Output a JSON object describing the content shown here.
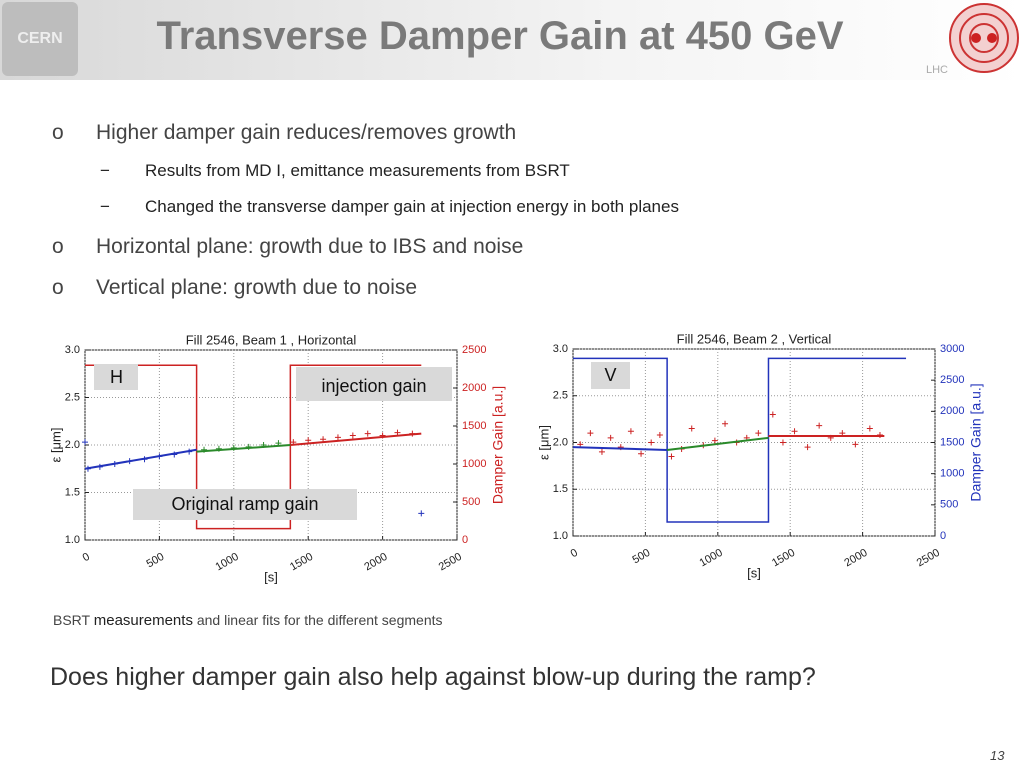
{
  "header": {
    "title": "Transverse Damper Gain at 450 GeV",
    "logo_left": "CERN",
    "logo_right": "LHC"
  },
  "bullets": [
    {
      "marker": "o",
      "text": "Higher damper gain reduces/removes growth",
      "sub": [
        {
          "marker": "−",
          "text": "Results from MD I, emittance measurements from BSRT"
        },
        {
          "marker": "−",
          "text": "Changed the transverse damper gain at injection energy in both planes"
        }
      ]
    },
    {
      "marker": "o",
      "text": "Horizontal plane: growth due to IBS and noise"
    },
    {
      "marker": "o",
      "text": "Vertical plane: growth due to noise"
    }
  ],
  "charts": [
    {
      "type": "scatter",
      "title": "Fill 2546, Beam 1 , Horizontal",
      "xlabel": "[s]",
      "ylabel": "ε [μm]",
      "y2label": "Damper Gain [a.u.]",
      "y2_color": "#cc2222",
      "xlim": [
        0,
        2500
      ],
      "xticks": [
        0,
        500,
        1000,
        1500,
        2000,
        2500
      ],
      "ylim": [
        1.0,
        3.0
      ],
      "yticks": [
        {
          "value": 1.0,
          "label": "1.0"
        },
        1.5,
        {
          "value": 2.0,
          "label": "2.0"
        },
        2.5,
        {
          "value": 3.0,
          "label": "3.0"
        }
      ],
      "y2lim": [
        0,
        2500
      ],
      "y2ticks": [
        0,
        500,
        1000,
        1500,
        2000,
        2500
      ],
      "grid": true,
      "annotations": [
        "H",
        "injection gain",
        "Original ramp gain"
      ],
      "series": [
        {
          "style": "line",
          "axis": "y2",
          "color": "#cc2222",
          "x": [
            0,
            750,
            750,
            1380,
            1380,
            2260
          ],
          "values": [
            2300,
            2300,
            150,
            150,
            2300,
            2300
          ]
        },
        {
          "style": "markers",
          "color": "#2233bb",
          "x": [
            0,
            20,
            100,
            200,
            300,
            400,
            500,
            600,
            700,
            2260
          ],
          "values": [
            2.03,
            1.75,
            1.77,
            1.8,
            1.83,
            1.85,
            1.88,
            1.9,
            1.93,
            1.28
          ]
        },
        {
          "style": "markers",
          "color": "#2a8a2a",
          "x": [
            800,
            900,
            1000,
            1100,
            1200,
            1300
          ],
          "values": [
            1.95,
            1.96,
            1.97,
            1.98,
            2.0,
            2.02
          ]
        },
        {
          "style": "markers",
          "color": "#cc2222",
          "x": [
            1400,
            1500,
            1600,
            1700,
            1800,
            1900,
            2000,
            2100,
            2200
          ],
          "values": [
            2.03,
            2.05,
            2.06,
            2.08,
            2.1,
            2.12,
            2.1,
            2.13,
            2.12
          ]
        },
        {
          "style": "line",
          "color": "#2233bb",
          "x": [
            0,
            750
          ],
          "values": [
            1.75,
            1.95
          ]
        },
        {
          "style": "line",
          "color": "#2a8a2a",
          "x": [
            750,
            1380
          ],
          "values": [
            1.93,
            2.0
          ]
        },
        {
          "style": "line",
          "color": "#cc2222",
          "x": [
            1380,
            2260
          ],
          "values": [
            2.0,
            2.12
          ]
        }
      ]
    },
    {
      "type": "scatter",
      "title": "Fill 2546, Beam 2 , Vertical",
      "xlabel": "[s]",
      "ylabel": "ε [μm]",
      "y2label": "Damper Gain [a.u.]",
      "y2_color": "#2233bb",
      "xlim": [
        0,
        2500
      ],
      "xticks": [
        0,
        500,
        1000,
        1500,
        2000,
        2500
      ],
      "ylim": [
        1.0,
        3.0
      ],
      "yticks": [
        {
          "value": 1.0,
          "label": "1.0"
        },
        1.5,
        {
          "value": 2.0,
          "label": "2.0"
        },
        2.5,
        {
          "value": 3.0,
          "label": "3.0"
        }
      ],
      "y2lim": [
        0,
        3000
      ],
      "y2ticks": [
        0,
        500,
        1000,
        1500,
        2000,
        2500,
        3000
      ],
      "grid": true,
      "annotations": [
        "V"
      ],
      "series": [
        {
          "style": "line",
          "axis": "y2",
          "color": "#2233bb",
          "x": [
            0,
            650,
            650,
            1350,
            1350,
            2300
          ],
          "values": [
            2850,
            2850,
            225,
            225,
            2850,
            2850
          ]
        },
        {
          "style": "markers",
          "color": "#cc2222",
          "x": [
            50,
            120,
            200,
            260,
            330,
            400,
            470,
            540,
            600,
            680,
            750,
            820,
            900,
            980,
            1050,
            1130,
            1200,
            1280,
            1380,
            1450,
            1530,
            1620,
            1700,
            1780,
            1860,
            1950,
            2050,
            2120
          ],
          "values": [
            1.98,
            2.1,
            1.9,
            2.05,
            1.95,
            2.12,
            1.88,
            2.0,
            2.08,
            1.85,
            1.93,
            2.15,
            1.97,
            2.02,
            2.2,
            2.0,
            2.05,
            2.1,
            2.3,
            2.0,
            2.12,
            1.95,
            2.18,
            2.05,
            2.1,
            1.98,
            2.15,
            2.08
          ]
        },
        {
          "style": "line",
          "color": "#2233bb",
          "x": [
            0,
            650
          ],
          "values": [
            1.95,
            1.92
          ]
        },
        {
          "style": "line",
          "color": "#2a8a2a",
          "x": [
            650,
            1350
          ],
          "values": [
            1.92,
            2.05
          ]
        },
        {
          "style": "line",
          "color": "#cc2222",
          "x": [
            1350,
            2150
          ],
          "values": [
            2.07,
            2.07
          ]
        }
      ]
    }
  ],
  "caption": [
    "BSRT ",
    "measurements",
    " and linear fits for the different segments"
  ],
  "question": "Does higher damper gain also help against blow-up during the ramp?",
  "page_number": "13"
}
